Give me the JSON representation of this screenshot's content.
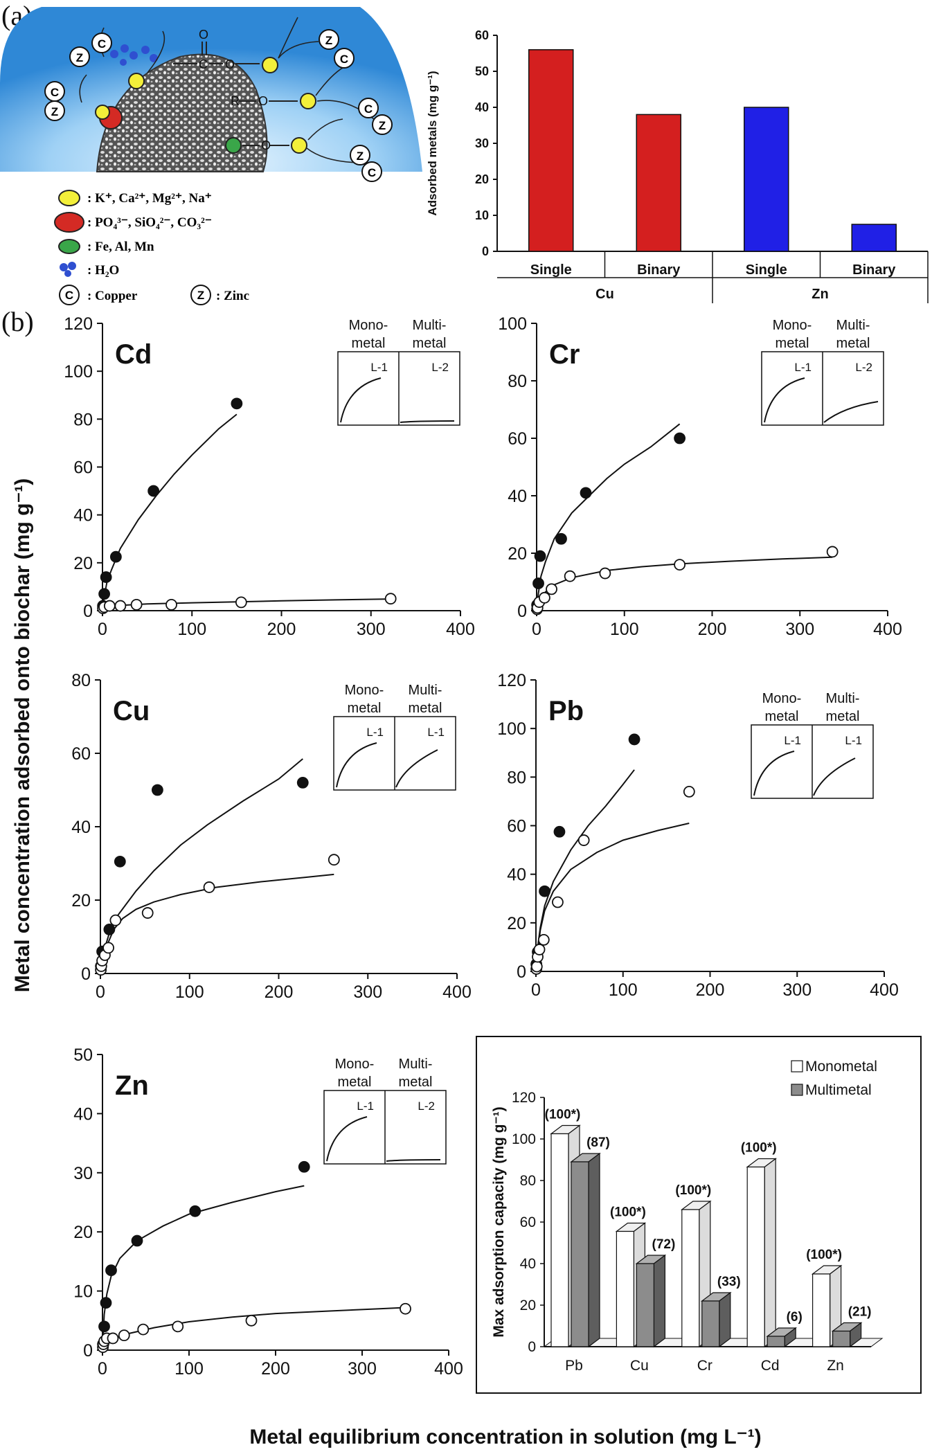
{
  "panel_labels": {
    "a": "(a)",
    "b": "(b)"
  },
  "diagram": {
    "groups": [
      "O",
      "C",
      "O",
      "R",
      "O",
      "O"
    ],
    "cations_legend": "K⁺, Ca²⁺, Mg²⁺, Na⁺",
    "anions_legend": "PO₄³⁻, SiO₄²⁻, CO₃²⁻",
    "metals_legend": "Fe, Al, Mn",
    "water_legend": "H₂O",
    "copper_symbol": "C",
    "zinc_symbol": "Z",
    "copper_label": "Copper",
    "zinc_label": "Zinc",
    "colors": {
      "cation": "#f3ef3a",
      "anion": "#d42a24",
      "metal": "#3aa649",
      "water": "#2f4fd0",
      "halo": "#3f9be0"
    }
  },
  "chart_data": [
    {
      "id": "adsorbed",
      "type": "bar",
      "ylabel": "Adsorbed metals (mg g⁻¹)",
      "ylim": [
        0,
        60
      ],
      "yticks": [
        0,
        10,
        20,
        30,
        40,
        50,
        60
      ],
      "categories": [
        "Single",
        "Binary",
        "Single",
        "Binary"
      ],
      "groups": [
        "Cu",
        "Zn"
      ],
      "values": [
        56,
        38,
        40,
        7.5
      ],
      "colors": [
        "#d41f1f",
        "#d41f1f",
        "#2020e6",
        "#2020e6"
      ]
    },
    {
      "id": "Cd",
      "type": "scatter",
      "title": "Cd",
      "xlim": [
        0,
        400
      ],
      "ylim": [
        0,
        120
      ],
      "xticks": [
        0,
        100,
        200,
        300,
        400
      ],
      "yticks": [
        0,
        20,
        40,
        60,
        80,
        100,
        120
      ],
      "series": [
        {
          "name": "Monometal",
          "marker": "filled",
          "x": [
            0.5,
            2,
            4,
            15,
            57,
            150
          ],
          "y": [
            2,
            7,
            14,
            22.5,
            50,
            86.5
          ]
        },
        {
          "name": "Multimetal",
          "marker": "open",
          "x": [
            0.5,
            2,
            8,
            20,
            38,
            77,
            155,
            322
          ],
          "y": [
            1,
            1.5,
            2,
            2,
            2.5,
            2.5,
            3.5,
            5
          ]
        }
      ],
      "fit_mono": {
        "x": [
          0,
          2,
          5,
          10,
          20,
          40,
          60,
          80,
          100,
          130,
          150
        ],
        "y": [
          0,
          6,
          12,
          17,
          26,
          38,
          48,
          57,
          65,
          76,
          82
        ]
      },
      "fit_multi": {
        "x": [
          0,
          5,
          20,
          50,
          100,
          150,
          200,
          260,
          322
        ],
        "y": [
          0,
          1.5,
          2.2,
          2.8,
          3.3,
          3.7,
          4.1,
          4.5,
          4.9
        ]
      },
      "inset": {
        "left_head": [
          "Mono-",
          "metal"
        ],
        "right_head": [
          "Multi-",
          "metal"
        ],
        "left_tag": "L-1",
        "right_tag": "L-2",
        "right_shape": "flat"
      }
    },
    {
      "id": "Cr",
      "type": "scatter",
      "title": "Cr",
      "xlim": [
        0,
        400
      ],
      "ylim": [
        0,
        100
      ],
      "xticks": [
        0,
        100,
        200,
        300,
        400
      ],
      "yticks": [
        0,
        20,
        40,
        60,
        80,
        100
      ],
      "series": [
        {
          "name": "Monometal",
          "marker": "filled",
          "x": [
            0.5,
            2,
            4,
            28,
            56,
            163
          ],
          "y": [
            2,
            9.5,
            19,
            25,
            41,
            60
          ]
        },
        {
          "name": "Multimetal",
          "marker": "open",
          "x": [
            0.5,
            1,
            3,
            9,
            17,
            38,
            78,
            163,
            337
          ],
          "y": [
            0.5,
            1,
            3,
            4.5,
            7.5,
            12,
            13,
            16,
            20.5
          ]
        }
      ],
      "fit_mono": {
        "x": [
          0,
          2,
          5,
          10,
          20,
          40,
          60,
          80,
          100,
          130,
          163
        ],
        "y": [
          0,
          6,
          12,
          17,
          25,
          34,
          40,
          46,
          51,
          57,
          65
        ]
      },
      "fit_multi": {
        "x": [
          0,
          3,
          10,
          20,
          40,
          80,
          120,
          163,
          220,
          280,
          337
        ],
        "y": [
          0,
          3,
          6.5,
          9,
          11.5,
          14,
          15.3,
          16.3,
          17.2,
          18,
          18.6
        ]
      },
      "inset": {
        "left_head": [
          "Mono-",
          "metal"
        ],
        "right_head": [
          "Multi-",
          "metal"
        ],
        "left_tag": "L-1",
        "right_tag": "L-2",
        "right_shape": "low"
      }
    },
    {
      "id": "Cu",
      "type": "scatter",
      "title": "Cu",
      "xlim": [
        0,
        400
      ],
      "ylim": [
        0,
        80
      ],
      "xticks": [
        0,
        100,
        200,
        300,
        400
      ],
      "yticks": [
        0,
        20,
        40,
        60,
        80
      ],
      "series": [
        {
          "name": "Monometal",
          "marker": "filled",
          "x": [
            0.5,
            2,
            10,
            22,
            64,
            227
          ],
          "y": [
            2,
            6,
            12,
            30.5,
            50,
            52
          ]
        },
        {
          "name": "Multimetal",
          "marker": "open",
          "x": [
            0.5,
            1,
            2,
            5,
            9,
            17,
            53,
            122,
            262
          ],
          "y": [
            1,
            2,
            3.5,
            5,
            7,
            14.5,
            16.5,
            23.5,
            31
          ]
        }
      ],
      "fit_mono": {
        "x": [
          0,
          2,
          5,
          10,
          20,
          40,
          60,
          90,
          120,
          160,
          200,
          227
        ],
        "y": [
          0,
          4,
          7,
          11,
          16,
          22.5,
          28,
          35,
          40.5,
          47,
          53,
          58.5
        ]
      },
      "fit_multi": {
        "x": [
          0,
          3,
          8,
          15,
          25,
          40,
          60,
          90,
          130,
          180,
          230,
          262
        ],
        "y": [
          0,
          4,
          8,
          12,
          15,
          17.5,
          19.5,
          21.5,
          23.5,
          25,
          26.2,
          27
        ]
      },
      "inset": {
        "left_head": [
          "Mono-",
          "metal"
        ],
        "right_head": [
          "Multi-",
          "metal"
        ],
        "left_tag": "L-1",
        "right_tag": "L-1",
        "right_shape": "curve"
      }
    },
    {
      "id": "Pb",
      "type": "scatter",
      "title": "Pb",
      "xlim": [
        0,
        400
      ],
      "ylim": [
        0,
        120
      ],
      "xticks": [
        0,
        100,
        200,
        300,
        400
      ],
      "yticks": [
        0,
        20,
        40,
        60,
        80,
        100,
        120
      ],
      "series": [
        {
          "name": "Monometal",
          "marker": "filled",
          "x": [
            0.5,
            2,
            10,
            27,
            113
          ],
          "y": [
            3,
            8,
            33,
            57.5,
            95.5
          ]
        },
        {
          "name": "Multimetal",
          "marker": "open",
          "x": [
            0.5,
            1,
            2,
            4,
            9,
            25,
            55,
            176
          ],
          "y": [
            1,
            2,
            6,
            9,
            13,
            28.5,
            54,
            74
          ]
        }
      ],
      "fit_mono": {
        "x": [
          0,
          2,
          5,
          10,
          20,
          40,
          60,
          80,
          100,
          113
        ],
        "y": [
          0,
          10,
          18,
          27,
          37,
          50,
          60,
          68,
          77,
          83
        ]
      },
      "fit_multi": {
        "x": [
          0,
          2,
          5,
          10,
          20,
          40,
          70,
          100,
          140,
          176
        ],
        "y": [
          0,
          8,
          17,
          25,
          33,
          42,
          49,
          54,
          58,
          61
        ]
      },
      "inset": {
        "left_head": [
          "Mono-",
          "metal"
        ],
        "right_head": [
          "Multi-",
          "metal"
        ],
        "left_tag": "L-1",
        "right_tag": "L-1",
        "right_shape": "curve"
      }
    },
    {
      "id": "Zn",
      "type": "scatter",
      "title": "Zn",
      "xlim": [
        0,
        400
      ],
      "ylim": [
        0,
        50
      ],
      "xticks": [
        0,
        100,
        200,
        300,
        400
      ],
      "yticks": [
        0,
        10,
        20,
        30,
        40,
        50
      ],
      "series": [
        {
          "name": "Monometal",
          "marker": "filled",
          "x": [
            0.5,
            2,
            4,
            10,
            40,
            107,
            233
          ],
          "y": [
            1,
            4,
            8,
            13.5,
            18.5,
            23.5,
            31
          ]
        },
        {
          "name": "Multimetal",
          "marker": "open",
          "x": [
            0.5,
            1,
            2,
            5,
            12,
            25,
            47,
            87,
            172,
            350
          ],
          "y": [
            0.5,
            1,
            1.5,
            2,
            2,
            2.5,
            3.5,
            4,
            5,
            7
          ]
        }
      ],
      "fit_mono": {
        "x": [
          0,
          2,
          5,
          10,
          20,
          40,
          70,
          100,
          150,
          200,
          233
        ],
        "y": [
          0,
          6,
          9.5,
          12.5,
          15.5,
          18.5,
          21,
          23,
          25,
          26.8,
          27.8
        ]
      },
      "fit_multi": {
        "x": [
          0,
          5,
          15,
          30,
          60,
          100,
          150,
          200,
          260,
          320,
          350
        ],
        "y": [
          0,
          1.2,
          2,
          2.8,
          3.8,
          4.8,
          5.6,
          6.2,
          6.6,
          7,
          7.2
        ]
      },
      "inset": {
        "left_head": [
          "Mono-",
          "metal"
        ],
        "right_head": [
          "Multi-",
          "metal"
        ],
        "left_tag": "L-1",
        "right_tag": "L-2",
        "right_shape": "flat"
      }
    },
    {
      "id": "max_capacity",
      "type": "bar",
      "ylabel": "Max adsorption capacity (mg g⁻¹)",
      "ylim": [
        0,
        120
      ],
      "yticks": [
        0,
        20,
        40,
        60,
        80,
        100,
        120
      ],
      "categories": [
        "Pb",
        "Cu",
        "Cr",
        "Cd",
        "Zn"
      ],
      "series": [
        {
          "name": "Monometal",
          "values": [
            102.5,
            55.5,
            66,
            86.5,
            35
          ],
          "labels": [
            "(100*)",
            "(100*)",
            "(100*)",
            "(100*)",
            "(100*)"
          ]
        },
        {
          "name": "Multimetal",
          "values": [
            89,
            40,
            22,
            5,
            7.5
          ],
          "labels": [
            "(87)",
            "(72)",
            "(33)",
            "(6)",
            "(21)"
          ]
        }
      ]
    }
  ],
  "shared_axes": {
    "ylabel": "Metal concentration adsorbed onto biochar (mg g⁻¹)",
    "xlabel": "Metal equilibrium concentration in solution (mg L⁻¹)"
  }
}
